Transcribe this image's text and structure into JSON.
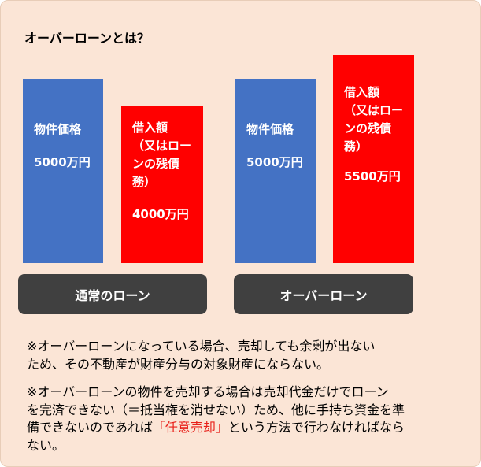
{
  "title": "オーバーローンとは？",
  "groups": [
    {
      "label": "通常のローン",
      "bars": [
        {
          "lines": [
            "物件価格"
          ],
          "amount": "5000万円"
        },
        {
          "lines": [
            "借入額",
            "（又はロー",
            "ンの残債",
            "務）"
          ],
          "amount": "4000万円"
        }
      ]
    },
    {
      "label": "オーバーローン",
      "bars": [
        {
          "lines": [
            "物件価格"
          ],
          "amount": "5000万円"
        },
        {
          "lines": [
            "借入額",
            "（又はロー",
            "ンの残債",
            "務）"
          ],
          "amount": "5500万円"
        }
      ]
    }
  ],
  "notes": [
    {
      "lines": [
        [
          {
            "text": "※オーバーローンになっている場合、売却しても余剰が出ない"
          }
        ],
        [
          {
            "text": "ため、その不動産が財産分与の対象財産にならない。"
          }
        ]
      ]
    },
    {
      "lines": [
        [
          {
            "text": "※オーバーローンの物件を売却する場合は売却代金だけでローン"
          }
        ],
        [
          {
            "text": "を完済できない（＝抵当権を消せない）ため、他に手持ち資金を準"
          }
        ],
        [
          {
            "text": "備できないのであれば"
          },
          {
            "text": "「任意売却」",
            "color": "#e8201a"
          },
          {
            "text": "という方法で行わなければなら"
          }
        ],
        [
          {
            "text": "ない。"
          }
        ]
      ]
    }
  ]
}
